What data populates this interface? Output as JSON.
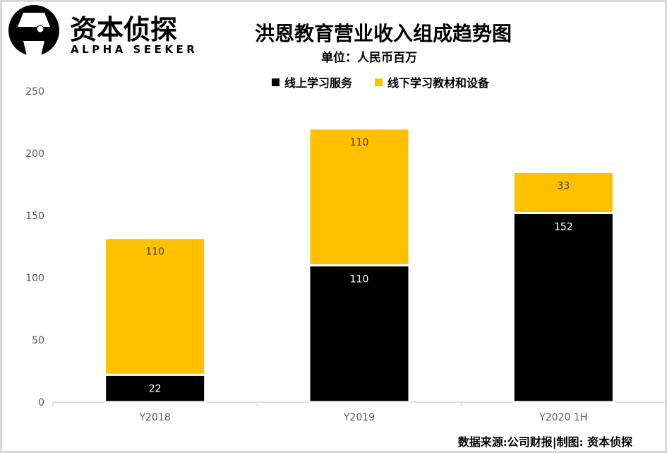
{
  "logo": {
    "cn": "资本侦探",
    "en": "ALPHA SEEKER"
  },
  "chart_data": {
    "type": "bar",
    "stacked": true,
    "title": "洪恩教育营业收入组成趋势图",
    "subtitle": "单位：人民币百万",
    "categories": [
      "Y2018",
      "Y2019",
      "Y2020 1H"
    ],
    "series": [
      {
        "name": "线上学习服务",
        "values": [
          22,
          110,
          152
        ],
        "color": "#000000"
      },
      {
        "name": "线下学习教材和设备",
        "values": [
          110,
          110,
          33
        ],
        "color": "#ffc000"
      }
    ],
    "ylim": [
      0,
      250
    ],
    "yticks": [
      0,
      50,
      100,
      150,
      200,
      250
    ],
    "grid": false,
    "legend": "top",
    "data_labels": true
  },
  "footer": "数据来源:公司财报|制图: 资本侦探"
}
